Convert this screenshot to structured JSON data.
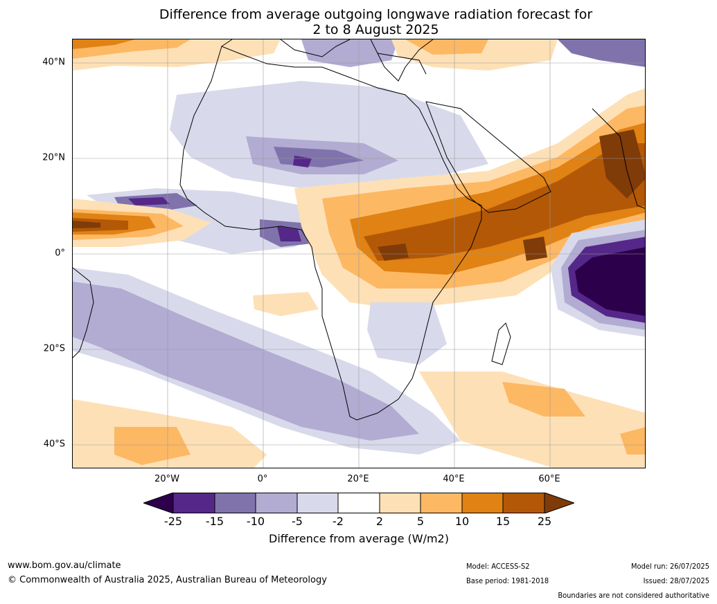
{
  "title": {
    "line1": "Difference from average outgoing longwave radiation forecast for",
    "line2": "2 to 8 August 2025"
  },
  "map": {
    "lat_labels": [
      "40°N",
      "20°N",
      "0°",
      "20°S",
      "40°S"
    ],
    "lon_labels": [
      "20°W",
      "0°",
      "20°E",
      "40°E",
      "60°E"
    ],
    "colors": {
      "lt_-25": "#2d004b",
      "-25_-15": "#542788",
      "-15_-10": "#8073ac",
      "-10_-5": "#b2abd2",
      "-5_-2": "#d8daeb",
      "-2_2": "#ffffff",
      "2_5": "#fee0b6",
      "5_10": "#fdb863",
      "10_15": "#e08214",
      "15_25": "#b35806",
      "gt_25": "#7f3b08"
    }
  },
  "colorbar": {
    "ticks": [
      "-25",
      "-15",
      "-10",
      "-5",
      "-2",
      "2",
      "5",
      "10",
      "15",
      "25"
    ],
    "label": "Difference from average (W/m2)"
  },
  "footer": {
    "website": "www.bom.gov.au/climate",
    "copyright": "© Commonwealth of Australia 2025, Australian Bureau of Meteorology",
    "model": "Model: ACCESS-S2",
    "base_period": "Base period: 1981-2018",
    "model_run": "Model run: 26/07/2025",
    "issued": "Issued: 28/07/2025",
    "disclaimer": "Boundaries are not considered authoritative"
  }
}
